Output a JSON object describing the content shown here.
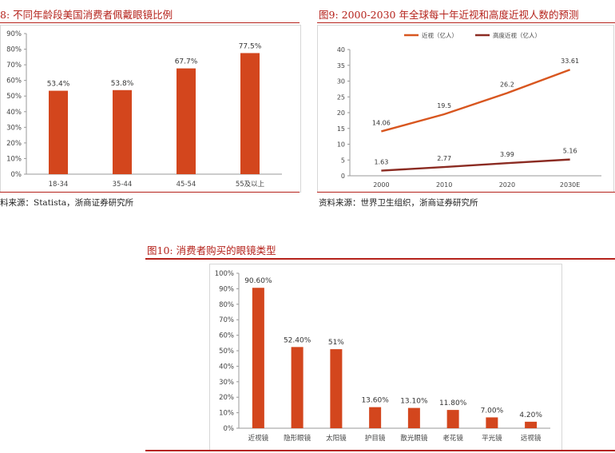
{
  "panels": {
    "left": {
      "title": "8:  不同年龄段美国消费者佩戴眼镜比例",
      "source": "料来源：Statista，浙商证券研究所"
    },
    "right": {
      "title": "图9:  2000-2030 年全球每十年近视和高度近视人数的预测",
      "source": "资料来源：世界卫生组织，浙商证券研究所"
    },
    "bottom": {
      "title": "图10:  消费者购买的眼镜类型"
    }
  },
  "colors": {
    "bar": "#d3461d",
    "line_myopia": "#d8561f",
    "line_high": "#8b2b22",
    "accent": "#b5221b",
    "axis": "#999999",
    "text": "#444444"
  },
  "chart_data": [
    {
      "id": "age",
      "type": "bar",
      "categories": [
        "18-34",
        "35-44",
        "45-54",
        "55及以上"
      ],
      "values": [
        53.4,
        53.8,
        67.7,
        77.5
      ],
      "value_labels": [
        "53.4%",
        "53.8%",
        "67.7%",
        "77.5%"
      ],
      "yticks": [
        "0%",
        "10%",
        "20%",
        "30%",
        "40%",
        "50%",
        "60%",
        "70%",
        "80%",
        "90%"
      ],
      "ylim": [
        0,
        90
      ],
      "grid": false
    },
    {
      "id": "myopia",
      "type": "line",
      "x": [
        "2000",
        "2010",
        "2020",
        "2030E"
      ],
      "series": [
        {
          "name": "近视（亿人）",
          "values": [
            14.06,
            19.5,
            26.2,
            33.61
          ],
          "labels": [
            "14.06",
            "19.5",
            "26.2",
            "33.61"
          ]
        },
        {
          "name": "高度近视（亿人）",
          "values": [
            1.63,
            2.77,
            3.99,
            5.16
          ],
          "labels": [
            "1.63",
            "2.77",
            "3.99",
            "5.16"
          ]
        }
      ],
      "yticks": [
        "0",
        "5",
        "10",
        "15",
        "20",
        "25",
        "30",
        "35",
        "40"
      ],
      "ylim": [
        0,
        40
      ],
      "legend": "top",
      "grid": false
    },
    {
      "id": "types",
      "type": "bar",
      "categories": [
        "近视镜",
        "隐形眼镜",
        "太阳镜",
        "护目镜",
        "散光眼镜",
        "老花镜",
        "平光镜",
        "远视镜"
      ],
      "values": [
        90.6,
        52.4,
        51,
        13.6,
        13.1,
        11.8,
        7.0,
        4.2
      ],
      "value_labels": [
        "90.60%",
        "52.40%",
        "51%",
        "13.60%",
        "13.10%",
        "11.80%",
        "7.00%",
        "4.20%"
      ],
      "yticks": [
        "0%",
        "10%",
        "20%",
        "30%",
        "40%",
        "50%",
        "60%",
        "70%",
        "80%",
        "90%",
        "100%"
      ],
      "ylim": [
        0,
        100
      ],
      "grid": false
    }
  ]
}
